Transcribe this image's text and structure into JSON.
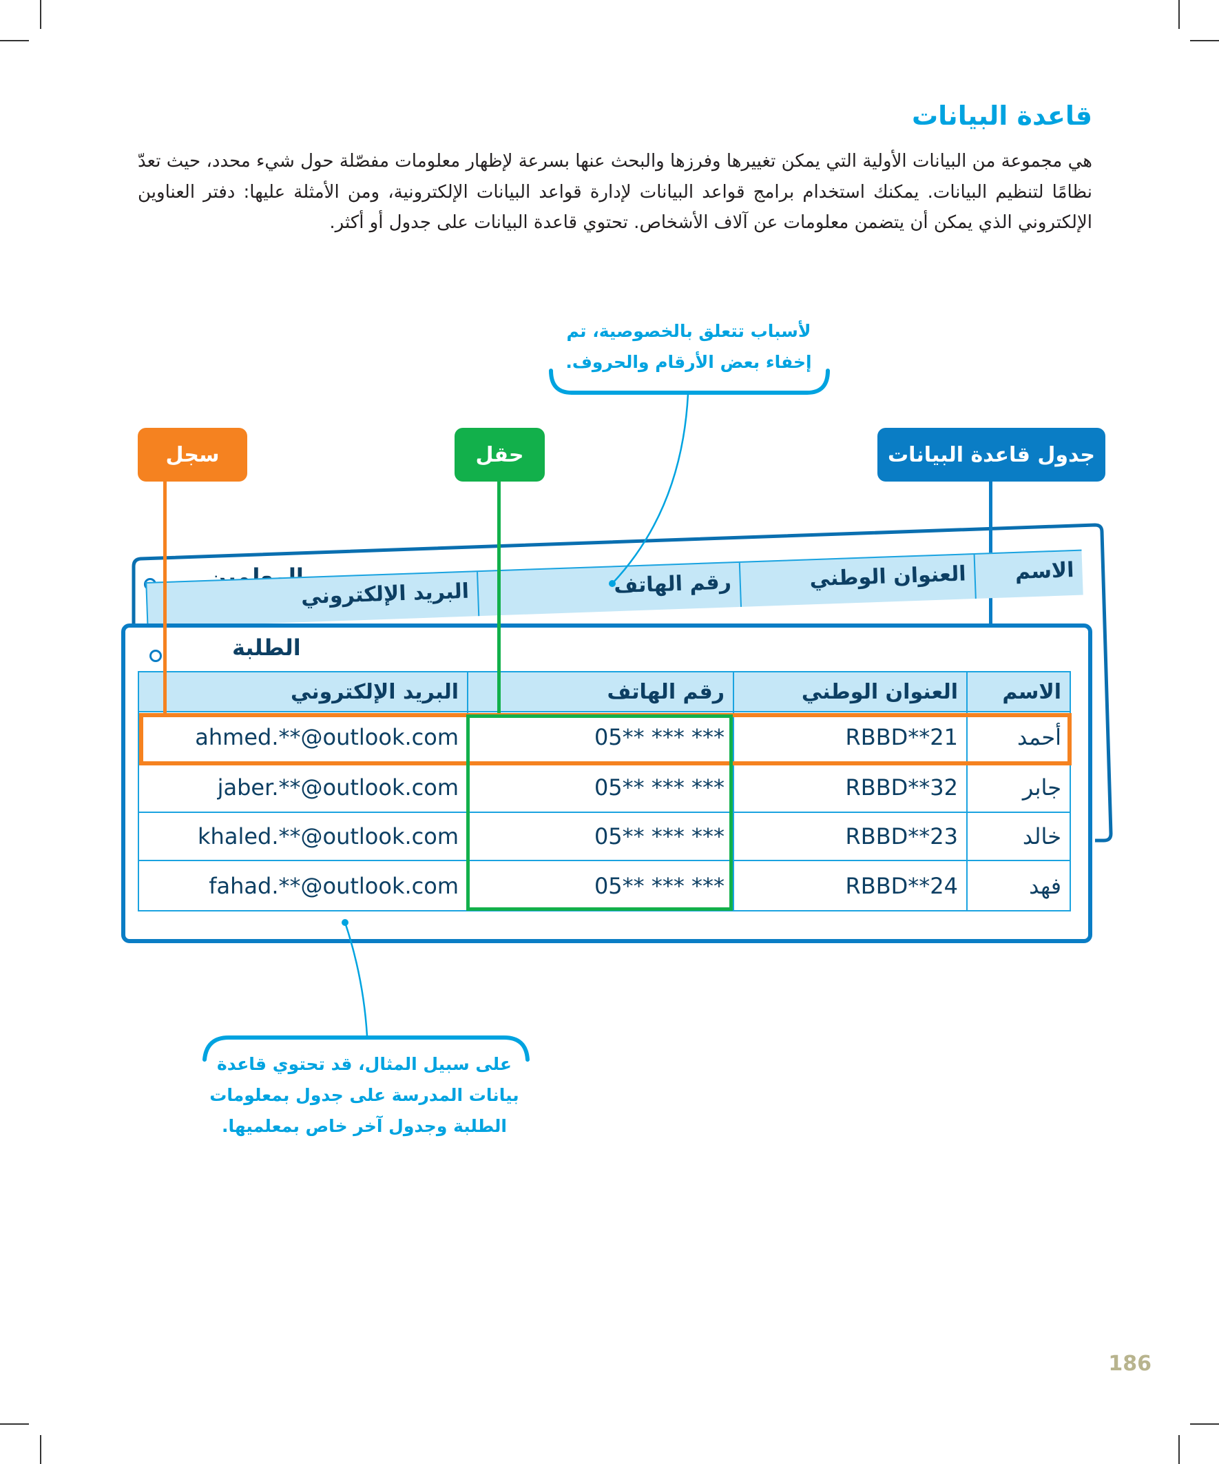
{
  "section": {
    "title": "قاعدة البيانات",
    "paragraph": "هي مجموعة من البيانات الأولية التي يمكن تغييرها وفرزها والبحث عنها بسرعة لإظهار معلومات مفصّلة حول شيء محدد، حيث تعدّ نظامًا لتنظيم البيانات. يمكنك استخدام برامج قواعد البيانات لإدارة قواعد البيانات الإلكترونية، ومن الأمثلة عليها: دفتر العناوين الإلكتروني الذي يمكن أن يتضمن معلومات عن آلاف الأشخاص. تحتوي قاعدة البيانات على جدول أو أكثر."
  },
  "callouts": {
    "privacy_line1": "لأسباب تتعلق بالخصوصية، تم",
    "privacy_line2": "إخفاء بعض الأرقام والحروف.",
    "example_line1": "على سبيل المثال، قد تحتوي قاعدة",
    "example_line2": "بيانات المدرسة على جدول بمعلومات",
    "example_line3": "الطلبة وجدول آخر خاص بمعلميها."
  },
  "labels": {
    "record": "سجل",
    "field": "حقل",
    "database_table": "جدول قاعدة البيانات"
  },
  "colors": {
    "record": "#f58220",
    "field": "#12b04b",
    "database_table": "#0a7dc5",
    "accent_text": "#00a3e0",
    "header_bg": "#c5e7f7"
  },
  "teachers_table": {
    "title": "المعلمين",
    "headers": [
      "الاسم",
      "العنوان الوطني",
      "رقم الهاتف",
      "البريد الإلكتروني"
    ]
  },
  "students_table": {
    "title": "الطلبة",
    "headers": [
      "الاسم",
      "العنوان الوطني",
      "رقم الهاتف",
      "البريد الإلكتروني"
    ],
    "rows": [
      [
        "أحمد",
        "RBBD**21",
        "05** *** ***",
        "ahmed.**@outlook.com"
      ],
      [
        "جابر",
        "RBBD**32",
        "05** *** ***",
        "jaber.**@outlook.com"
      ],
      [
        "خالد",
        "RBBD**23",
        "05** *** ***",
        "khaled.**@outlook.com"
      ],
      [
        "فهد",
        "RBBD**24",
        "05** *** ***",
        "fahad.**@outlook.com"
      ]
    ]
  },
  "page_number": "186"
}
